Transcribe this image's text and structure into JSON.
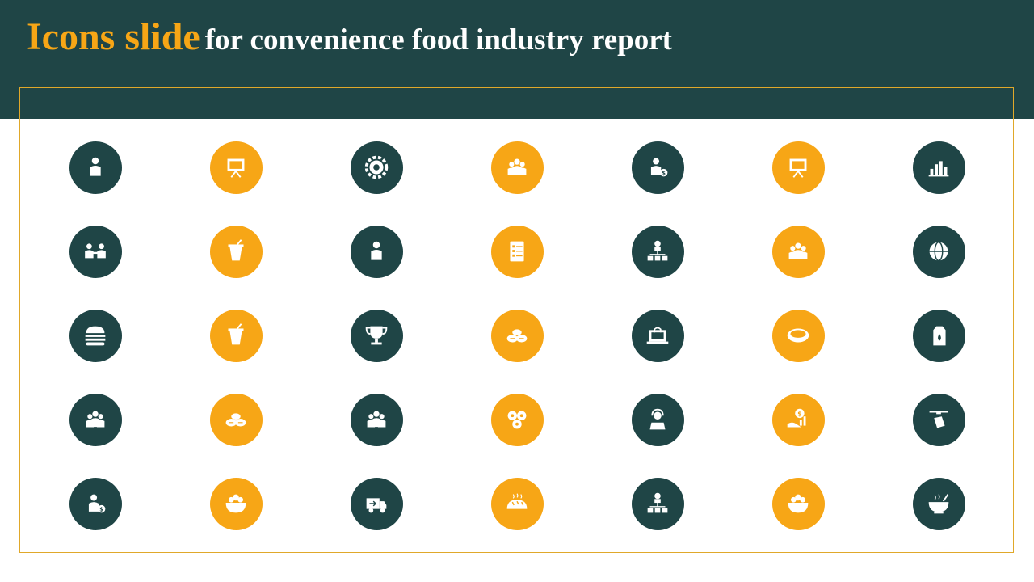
{
  "title": {
    "highlight": "Icons slide",
    "rest": "for convenience food industry report"
  },
  "colors": {
    "teal": "#1f4546",
    "orange": "#f7a616",
    "white": "#ffffff",
    "frame": "#e0a82a"
  },
  "rows": [
    [
      {
        "name": "org-hierarchy-person-icon",
        "color": "teal"
      },
      {
        "name": "presenter-boxes-icon",
        "color": "orange"
      },
      {
        "name": "gear-people-icon",
        "color": "teal"
      },
      {
        "name": "team-group-icon",
        "color": "orange"
      },
      {
        "name": "businessman-dollar-icon",
        "color": "teal"
      },
      {
        "name": "presentation-board-icon",
        "color": "orange"
      },
      {
        "name": "bar-chart-icon",
        "color": "teal"
      }
    ],
    [
      {
        "name": "people-handshake-icon",
        "color": "teal"
      },
      {
        "name": "ice-cream-cup-icon",
        "color": "orange"
      },
      {
        "name": "user-avatar-icon",
        "color": "teal"
      },
      {
        "name": "checklist-document-icon",
        "color": "orange"
      },
      {
        "name": "manager-finance-network-icon",
        "color": "teal"
      },
      {
        "name": "meeting-table-icon",
        "color": "orange"
      },
      {
        "name": "global-idea-icon",
        "color": "teal"
      }
    ],
    [
      {
        "name": "burger-icon",
        "color": "teal"
      },
      {
        "name": "drink-cup-icon",
        "color": "orange"
      },
      {
        "name": "trophy-icon",
        "color": "teal"
      },
      {
        "name": "fried-food-icon",
        "color": "orange"
      },
      {
        "name": "online-grocery-icon",
        "color": "teal"
      },
      {
        "name": "pie-dish-icon",
        "color": "orange"
      },
      {
        "name": "milk-carton-icon",
        "color": "teal"
      }
    ],
    [
      {
        "name": "team-collaboration-icon",
        "color": "teal"
      },
      {
        "name": "dumplings-icon",
        "color": "orange"
      },
      {
        "name": "team-leader-icon",
        "color": "teal"
      },
      {
        "name": "sushi-rolls-icon",
        "color": "orange"
      },
      {
        "name": "customer-support-icon",
        "color": "teal"
      },
      {
        "name": "hand-money-growth-icon",
        "color": "orange"
      },
      {
        "name": "drone-delivery-icon",
        "color": "teal"
      }
    ],
    [
      {
        "name": "investor-dollar-icon",
        "color": "teal"
      },
      {
        "name": "salad-bowl-icon",
        "color": "orange"
      },
      {
        "name": "delivery-truck-icon",
        "color": "teal"
      },
      {
        "name": "bread-loaf-icon",
        "color": "orange"
      },
      {
        "name": "org-chart-gear-icon",
        "color": "teal"
      },
      {
        "name": "fruit-bowl-icon",
        "color": "orange"
      },
      {
        "name": "soup-bowl-icon",
        "color": "teal"
      }
    ]
  ]
}
